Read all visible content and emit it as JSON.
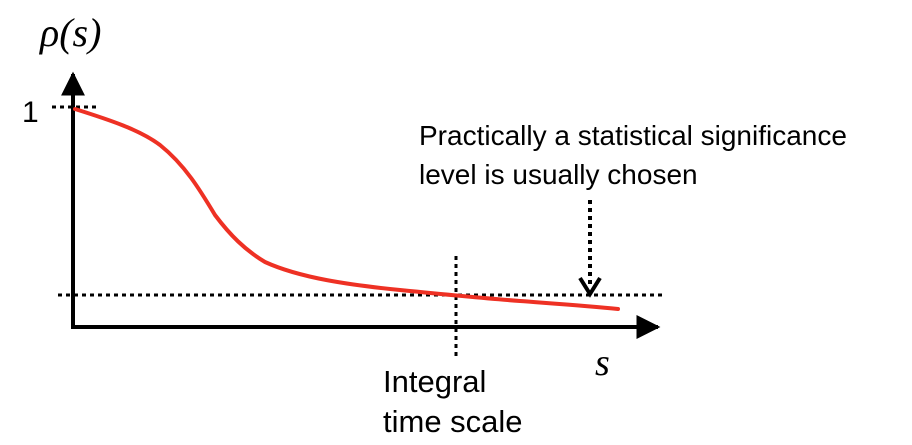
{
  "diagram": {
    "y_axis_label": "ρ(s)",
    "x_axis_label": "s",
    "y_tick_label": "1",
    "annotation_line1": "Practically a statistical significance",
    "annotation_line2": "level is usually chosen",
    "vertical_marker_line1": "Integral",
    "vertical_marker_line2": "time scale",
    "curve_color": "#ee3124",
    "axis_color": "#000000"
  }
}
